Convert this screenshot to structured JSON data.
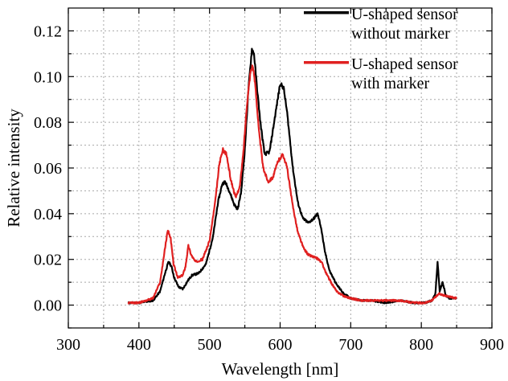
{
  "chart_data": {
    "type": "line",
    "title": "",
    "xlabel": "Wavelength [nm]",
    "ylabel": "Relative intensity",
    "xlim": [
      300,
      900
    ],
    "ylim": [
      -0.01,
      0.13
    ],
    "grid": true,
    "legend_position": "top-right",
    "x_ticks": [
      300,
      400,
      500,
      600,
      700,
      800,
      900
    ],
    "x_tick_labels": [
      "300",
      "400",
      "500",
      "600",
      "700",
      "800",
      "900"
    ],
    "y_ticks": [
      0.0,
      0.02,
      0.04,
      0.06,
      0.08,
      0.1,
      0.12
    ],
    "y_tick_labels": [
      "0.00",
      "0.02",
      "0.04",
      "0.06",
      "0.08",
      "0.10",
      "0.12"
    ],
    "series": [
      {
        "name_lines": [
          "U-shaped sensor",
          "without marker"
        ],
        "color": "#000000",
        "x": [
          385,
          400,
          420,
          430,
          437,
          442,
          446,
          450,
          456,
          462,
          466,
          470,
          475,
          485,
          495,
          505,
          512,
          518,
          522,
          528,
          535,
          540,
          545,
          550,
          555,
          560,
          563,
          567,
          572,
          578,
          585,
          593,
          600,
          605,
          610,
          618,
          625,
          632,
          640,
          648,
          653,
          658,
          663,
          670,
          680,
          690,
          700,
          715,
          730,
          750,
          770,
          790,
          805,
          815,
          820,
          823,
          826,
          830,
          835,
          840,
          850
        ],
        "y": [
          0.001,
          0.001,
          0.002,
          0.006,
          0.014,
          0.019,
          0.017,
          0.012,
          0.008,
          0.007,
          0.009,
          0.011,
          0.013,
          0.014,
          0.018,
          0.03,
          0.045,
          0.053,
          0.054,
          0.05,
          0.044,
          0.042,
          0.05,
          0.068,
          0.094,
          0.112,
          0.11,
          0.096,
          0.08,
          0.066,
          0.067,
          0.083,
          0.097,
          0.095,
          0.084,
          0.06,
          0.045,
          0.038,
          0.036,
          0.038,
          0.04,
          0.034,
          0.024,
          0.015,
          0.009,
          0.005,
          0.003,
          0.002,
          0.002,
          0.001,
          0.002,
          0.001,
          0.001,
          0.002,
          0.005,
          0.019,
          0.006,
          0.01,
          0.004,
          0.003,
          0.003
        ]
      },
      {
        "name_lines": [
          "U-shaped sensor",
          "with marker"
        ],
        "color": "#e02020",
        "x": [
          385,
          400,
          420,
          430,
          437,
          441,
          445,
          449,
          455,
          462,
          466,
          470,
          474,
          480,
          490,
          500,
          508,
          514,
          519,
          524,
          530,
          537,
          543,
          548,
          553,
          558,
          561,
          565,
          570,
          576,
          583,
          590,
          597,
          604,
          610,
          617,
          625,
          633,
          640,
          648,
          655,
          660,
          665,
          672,
          680,
          690,
          700,
          715,
          730,
          750,
          770,
          790,
          805,
          815,
          825,
          835,
          850
        ],
        "y": [
          0.001,
          0.001,
          0.003,
          0.01,
          0.025,
          0.033,
          0.029,
          0.018,
          0.012,
          0.013,
          0.017,
          0.026,
          0.022,
          0.019,
          0.02,
          0.028,
          0.045,
          0.062,
          0.068,
          0.066,
          0.055,
          0.047,
          0.052,
          0.067,
          0.088,
          0.102,
          0.105,
          0.096,
          0.076,
          0.06,
          0.054,
          0.056,
          0.063,
          0.066,
          0.06,
          0.045,
          0.032,
          0.025,
          0.022,
          0.021,
          0.02,
          0.018,
          0.014,
          0.01,
          0.006,
          0.004,
          0.003,
          0.002,
          0.002,
          0.002,
          0.002,
          0.001,
          0.001,
          0.002,
          0.005,
          0.004,
          0.003
        ]
      }
    ]
  }
}
